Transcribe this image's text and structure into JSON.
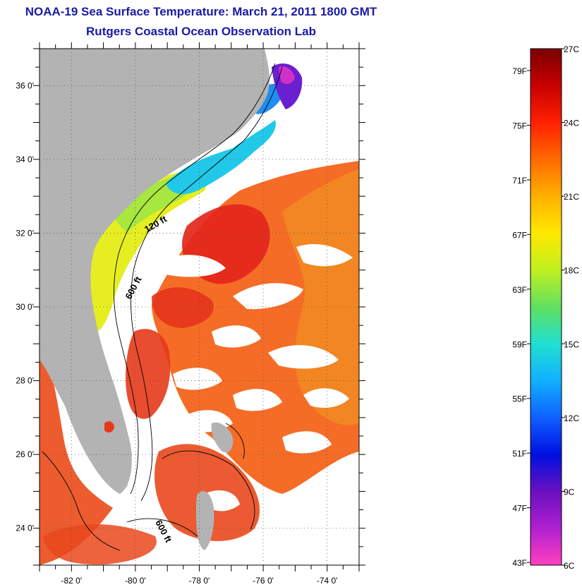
{
  "title": "NOAA-19 Sea Surface Temperature:  March 21, 2011 1800 GMT",
  "subtitle": "Rutgers Coastal Ocean Observation Lab",
  "map": {
    "lat_labels": [
      "36 0'",
      "34 0'",
      "32 0'",
      "30 0'",
      "28 0'",
      "26 0'",
      "24 0'"
    ],
    "lat_values": [
      36,
      34,
      32,
      30,
      28,
      26,
      24
    ],
    "lon_labels": [
      "-82 0'",
      "-80 0'",
      "-78 0'",
      "-76 0'",
      "-74 0'"
    ],
    "lon_values": [
      -82,
      -80,
      -78,
      -76,
      -74
    ],
    "lon_range": [
      -83,
      -73
    ],
    "lat_range": [
      23,
      37
    ],
    "contour_labels": [
      "120 ft",
      "600 ft",
      "600 ft"
    ],
    "colors": {
      "land": "#b3b3b3",
      "no_data": "#ffffff",
      "warm_ocean": "#f25a16",
      "hot_ocean": "#e52610",
      "cool_shelf": "#e9e41a",
      "cold_shelf": "#19c7e6",
      "sound": "#6a1fd0"
    }
  },
  "colorbar": {
    "fahrenheit_labels": [
      "79F",
      "75F",
      "71F",
      "67F",
      "63F",
      "59F",
      "55F",
      "51F",
      "47F",
      "43F"
    ],
    "celsius_labels": [
      "27C",
      "24C",
      "21C",
      "18C",
      "15C",
      "12C",
      "9C",
      "6C"
    ],
    "celsius_min": 6,
    "celsius_max": 27,
    "gradient": [
      "#7a0000",
      "#c80000",
      "#ff2000",
      "#ff6a00",
      "#ffb000",
      "#ffe800",
      "#c0f020",
      "#60e060",
      "#20e0d0",
      "#10b0ff",
      "#1060ff",
      "#0010e0",
      "#6a10c0",
      "#b020d0",
      "#ff40c0"
    ]
  }
}
